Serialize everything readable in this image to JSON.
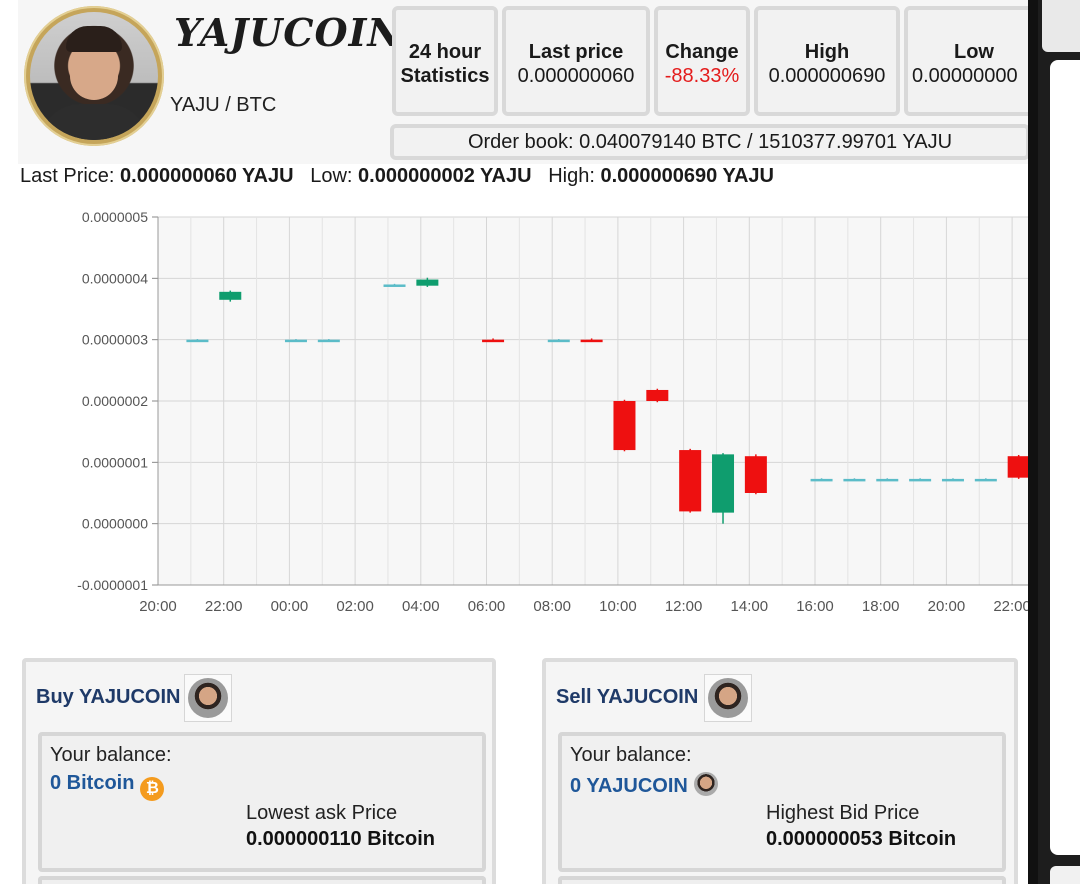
{
  "header": {
    "coin_title": "YAJUCOIN",
    "pair": "YAJU / BTC",
    "stats": [
      {
        "label": "24 hour",
        "value": "Statistics",
        "negative": false
      },
      {
        "label": "Last price",
        "value": "0.000000060",
        "negative": false
      },
      {
        "label": "Change",
        "value": "-88.33%",
        "negative": true
      },
      {
        "label": "High",
        "value": "0.000000690",
        "negative": false
      },
      {
        "label": "Low",
        "value": "0.00000000",
        "negative": false
      }
    ],
    "order_book": "Order book: 0.040079140 BTC / 1510377.99701 YAJU"
  },
  "summary": {
    "last_label": "Last Price:",
    "last_value": "0.000000060 YAJU",
    "low_label": "Low:",
    "low_value": "0.000000002 YAJU",
    "high_label": "High:",
    "high_value": "0.000000690 YAJU"
  },
  "chart_data": {
    "type": "candlestick",
    "y_ticks": [
      "0.0000005",
      "0.0000004",
      "0.0000003",
      "0.0000002",
      "0.0000001",
      "0.0000000",
      "-0.0000001"
    ],
    "x_ticks": [
      "20:00",
      "22:00",
      "00:00",
      "02:00",
      "04:00",
      "06:00",
      "08:00",
      "10:00",
      "12:00",
      "14:00",
      "16:00",
      "18:00",
      "20:00",
      "22:00"
    ],
    "ylim": [
      -1e-07,
      5e-07
    ],
    "grid": true,
    "candles": [
      {
        "t": 1.2,
        "open": 3e-07,
        "close": 3e-07,
        "high": 3.01e-07,
        "low": 2.99e-07
      },
      {
        "t": 2.2,
        "open": 3.65e-07,
        "close": 3.78e-07,
        "high": 3.8e-07,
        "low": 3.62e-07
      },
      {
        "t": 4.2,
        "open": 3e-07,
        "close": 3e-07,
        "high": 3.01e-07,
        "low": 2.99e-07
      },
      {
        "t": 5.2,
        "open": 3e-07,
        "close": 3e-07,
        "high": 3.01e-07,
        "low": 2.99e-07
      },
      {
        "t": 7.2,
        "open": 3.9e-07,
        "close": 3.9e-07,
        "high": 3.91e-07,
        "low": 3.89e-07
      },
      {
        "t": 8.2,
        "open": 3.88e-07,
        "close": 3.98e-07,
        "high": 4.01e-07,
        "low": 3.86e-07
      },
      {
        "t": 10.2,
        "open": 3e-07,
        "close": 2.99e-07,
        "high": 3.02e-07,
        "low": 2.98e-07
      },
      {
        "t": 12.2,
        "open": 3e-07,
        "close": 3e-07,
        "high": 3.01e-07,
        "low": 2.99e-07
      },
      {
        "t": 13.2,
        "open": 3e-07,
        "close": 2.99e-07,
        "high": 3.02e-07,
        "low": 2.98e-07
      },
      {
        "t": 14.2,
        "open": 2e-07,
        "close": 1.2e-07,
        "high": 2.02e-07,
        "low": 1.18e-07
      },
      {
        "t": 15.2,
        "open": 2.18e-07,
        "close": 2e-07,
        "high": 2.2e-07,
        "low": 1.98e-07
      },
      {
        "t": 16.2,
        "open": 1.2e-07,
        "close": 2e-08,
        "high": 1.22e-07,
        "low": 1.8e-08
      },
      {
        "t": 17.2,
        "open": 1.8e-08,
        "close": 1.13e-07,
        "high": 1.15e-07,
        "low": 0.0
      },
      {
        "t": 18.2,
        "open": 1.1e-07,
        "close": 5e-08,
        "high": 1.13e-07,
        "low": 4.8e-08
      },
      {
        "t": 20.2,
        "open": 7.3e-08,
        "close": 7.3e-08,
        "high": 7.4e-08,
        "low": 7.2e-08
      },
      {
        "t": 21.2,
        "open": 7.3e-08,
        "close": 7.3e-08,
        "high": 7.4e-08,
        "low": 7.2e-08
      },
      {
        "t": 22.2,
        "open": 7.3e-08,
        "close": 7.3e-08,
        "high": 7.4e-08,
        "low": 7.2e-08
      },
      {
        "t": 23.2,
        "open": 7.3e-08,
        "close": 7.3e-08,
        "high": 7.4e-08,
        "low": 7.2e-08
      },
      {
        "t": 24.2,
        "open": 7.3e-08,
        "close": 7.3e-08,
        "high": 7.4e-08,
        "low": 7.2e-08
      },
      {
        "t": 25.2,
        "open": 7.3e-08,
        "close": 7.3e-08,
        "high": 7.4e-08,
        "low": 7.2e-08
      },
      {
        "t": 26.2,
        "open": 1.1e-07,
        "close": 7.5e-08,
        "high": 1.12e-07,
        "low": 7.3e-08
      }
    ],
    "colors": {
      "up": "#0f9d6e",
      "down": "#ee1010",
      "flat": "#5bbcc8",
      "grid": "#d6d6d6"
    }
  },
  "buy": {
    "title": "Buy YAJUCOIN",
    "balance_label": "Your balance:",
    "balance_value": "0 Bitcoin",
    "coin_glyph": "₿",
    "price_label": "Lowest ask Price",
    "price_value": "0.000000110 Bitcoin"
  },
  "sell": {
    "title": "Sell YAJUCOIN",
    "balance_label": "Your balance:",
    "balance_value": "0 YAJUCOIN",
    "price_label": "Highest Bid Price",
    "price_value": "0.000000053 Bitcoin"
  }
}
